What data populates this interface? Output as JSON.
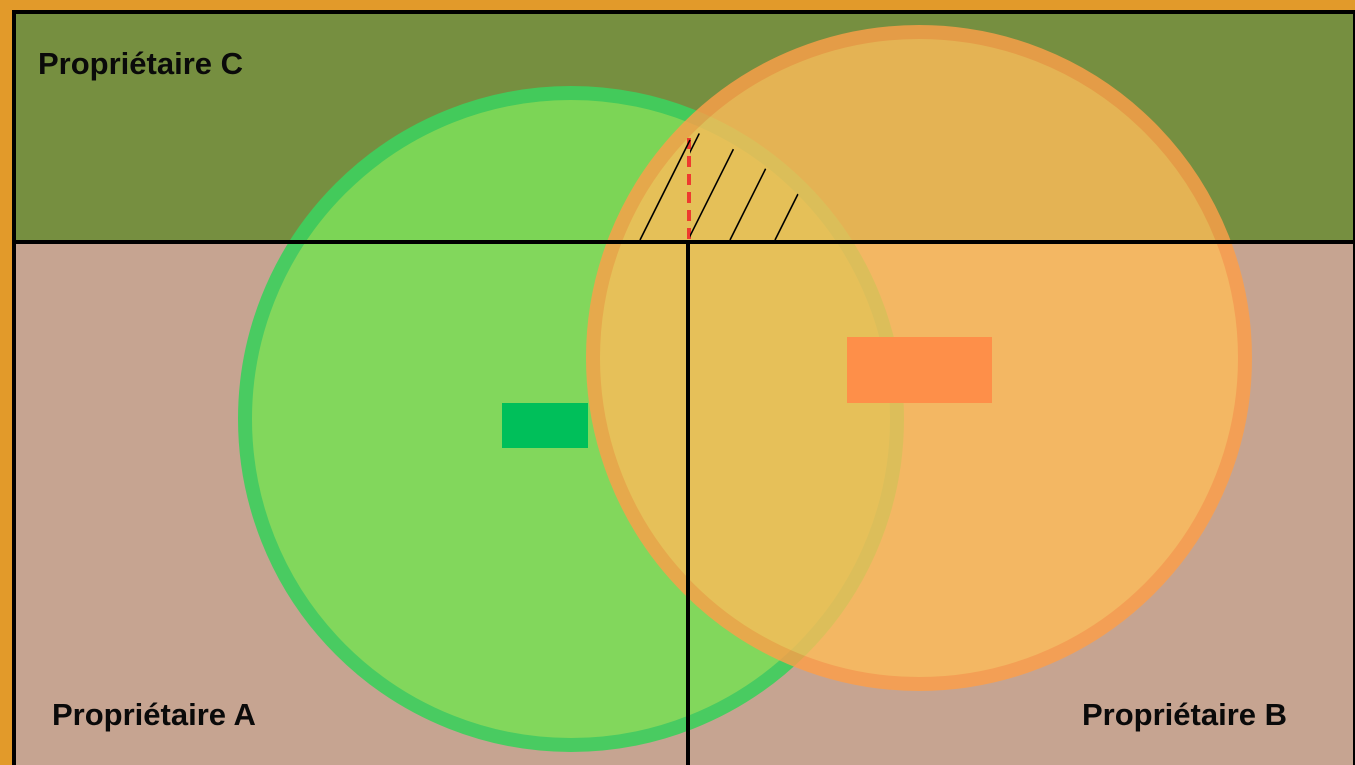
{
  "labels": {
    "owner_c": "Propriétaire C",
    "owner_a": "Propriétaire A",
    "owner_b": "Propriétaire B"
  },
  "colors": {
    "frame": "#e29a2a",
    "parcel_c": "#768f40",
    "parcel_ab": "#c6a491",
    "boundary": "#000000",
    "circle_green_fill": "#7ddc58",
    "circle_green_stroke": "#3fcf5e",
    "circle_orange_fill": "#fdbc59",
    "circle_orange_stroke": "#fd9f49",
    "building_green": "#00bf5a",
    "building_orange": "#fe8f49",
    "dashed_line": "#ee3a2e",
    "hatching": "#000000"
  }
}
